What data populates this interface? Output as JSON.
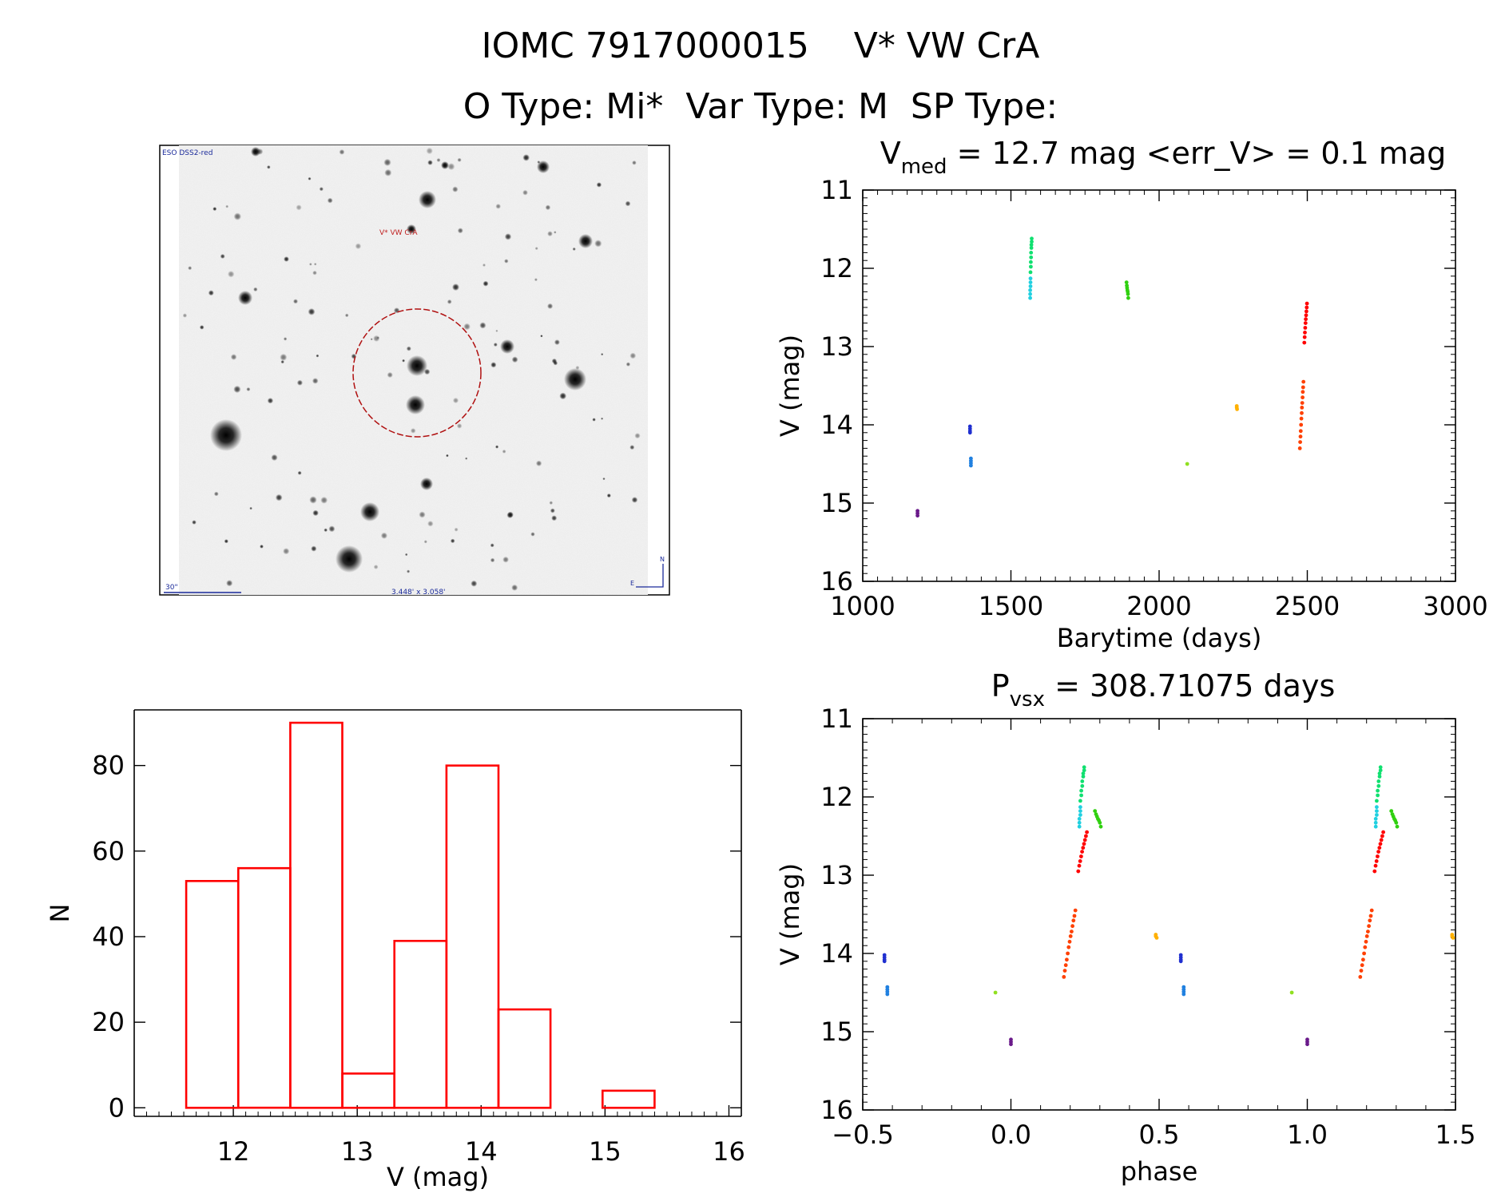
{
  "header": {
    "title_line1": "IOMC 7917000015    V* VW CrA",
    "title_line2": "O Type: Mi*  Var Type: M  SP Type:"
  },
  "finder": {
    "survey_label": "ESO DSS2-red",
    "target_label": "V* VW CrA",
    "scale_label": "30\"",
    "fov_label": "3.448' x 3.058'",
    "north_label": "N",
    "east_label": "E"
  },
  "colors": {
    "hist": "#ff0000",
    "axis": "#000000",
    "circle": "#b01010",
    "seasons": [
      "#6a1a8a",
      "#2030d0",
      "#2080e0",
      "#20d0e0",
      "#10e070",
      "#30d010",
      "#90e020",
      "#ffb000",
      "#ff4000",
      "#ff0000"
    ]
  },
  "chart_data": [
    {
      "type": "scatter",
      "name": "light-curve",
      "title_prefix": "V",
      "title_sub": "med",
      "title_rest": "= 12.7 mag <err_V> = 0.1 mag",
      "xlabel": "Barytime (days)",
      "ylabel": "V (mag)",
      "xlim": [
        1000,
        3000
      ],
      "ylim": [
        16,
        11
      ],
      "xticks": [
        1000,
        1500,
        2000,
        2500,
        3000
      ],
      "yticks": [
        11,
        12,
        13,
        14,
        15,
        16
      ],
      "series": [
        {
          "name": "season-1",
          "color_index": 0,
          "x": [
            1185,
            1185,
            1185
          ],
          "y": [
            15.1,
            15.13,
            15.16
          ]
        },
        {
          "name": "season-2a",
          "color_index": 1,
          "x": [
            1362,
            1362,
            1362,
            1362
          ],
          "y": [
            14.02,
            14.05,
            14.08,
            14.1
          ]
        },
        {
          "name": "season-2b",
          "color_index": 2,
          "x": [
            1365,
            1365,
            1365,
            1365
          ],
          "y": [
            14.43,
            14.46,
            14.49,
            14.52
          ]
        },
        {
          "name": "season-3a",
          "color_index": 3,
          "x": [
            1565,
            1565,
            1565,
            1566,
            1566,
            1566
          ],
          "y": [
            12.38,
            12.33,
            12.28,
            12.23,
            12.18,
            12.13
          ]
        },
        {
          "name": "season-3b",
          "color_index": 4,
          "x": [
            1566,
            1567,
            1567,
            1568,
            1568,
            1569,
            1569,
            1570,
            1570
          ],
          "y": [
            12.05,
            11.98,
            11.92,
            11.86,
            11.8,
            11.74,
            11.7,
            11.66,
            11.62
          ]
        },
        {
          "name": "season-4",
          "color_index": 5,
          "x": [
            1890,
            1891,
            1892,
            1893,
            1894,
            1895,
            1896
          ],
          "y": [
            12.18,
            12.22,
            12.25,
            12.28,
            12.3,
            12.33,
            12.38
          ]
        },
        {
          "name": "season-5",
          "color_index": 6,
          "x": [
            2095
          ],
          "y": [
            14.5
          ]
        },
        {
          "name": "season-6",
          "color_index": 7,
          "x": [
            2262,
            2262,
            2263
          ],
          "y": [
            13.76,
            13.78,
            13.8
          ]
        },
        {
          "name": "season-7a",
          "color_index": 8,
          "x": [
            2475,
            2476,
            2477,
            2478,
            2479,
            2480,
            2481,
            2482,
            2483,
            2484,
            2485,
            2486,
            2487
          ],
          "y": [
            14.3,
            14.22,
            14.15,
            14.08,
            14.0,
            13.92,
            13.85,
            13.78,
            13.72,
            13.65,
            13.58,
            13.52,
            13.45
          ]
        },
        {
          "name": "season-7b",
          "color_index": 9,
          "x": [
            2490,
            2491,
            2492,
            2493,
            2494,
            2495,
            2496,
            2497,
            2498,
            2499
          ],
          "y": [
            12.95,
            12.88,
            12.82,
            12.76,
            12.7,
            12.65,
            12.6,
            12.55,
            12.5,
            12.45
          ]
        }
      ]
    },
    {
      "type": "bar",
      "name": "histogram",
      "xlabel": "V (mag)",
      "ylabel": "N",
      "xlim": [
        11.2,
        16.1
      ],
      "ylim": [
        -2,
        93
      ],
      "xticks": [
        12,
        13,
        14,
        15,
        16
      ],
      "yticks": [
        0,
        20,
        40,
        60,
        80
      ],
      "bin_edges": [
        11.62,
        12.04,
        12.46,
        12.88,
        13.3,
        13.72,
        14.14,
        14.56,
        14.98,
        15.4
      ],
      "values": [
        53,
        56,
        90,
        8,
        39,
        80,
        23,
        0,
        4
      ]
    },
    {
      "type": "scatter",
      "name": "phased-curve",
      "title_prefix": "P",
      "title_sub": "vsx",
      "title_rest": "= 308.71075 days",
      "xlabel": "phase",
      "ylabel": "V (mag)",
      "xlim": [
        -0.5,
        1.5
      ],
      "ylim": [
        16,
        11
      ],
      "xticks": [
        -0.5,
        0.0,
        0.5,
        1.0,
        1.5
      ],
      "xtick_labels": [
        "−0.5",
        "0.0",
        "0.5",
        "1.0",
        "1.5"
      ],
      "yticks": [
        11,
        12,
        13,
        14,
        15,
        16
      ],
      "period": 308.71075,
      "epoch": 1185,
      "phase_range": [
        -0.5,
        1.5
      ]
    }
  ]
}
